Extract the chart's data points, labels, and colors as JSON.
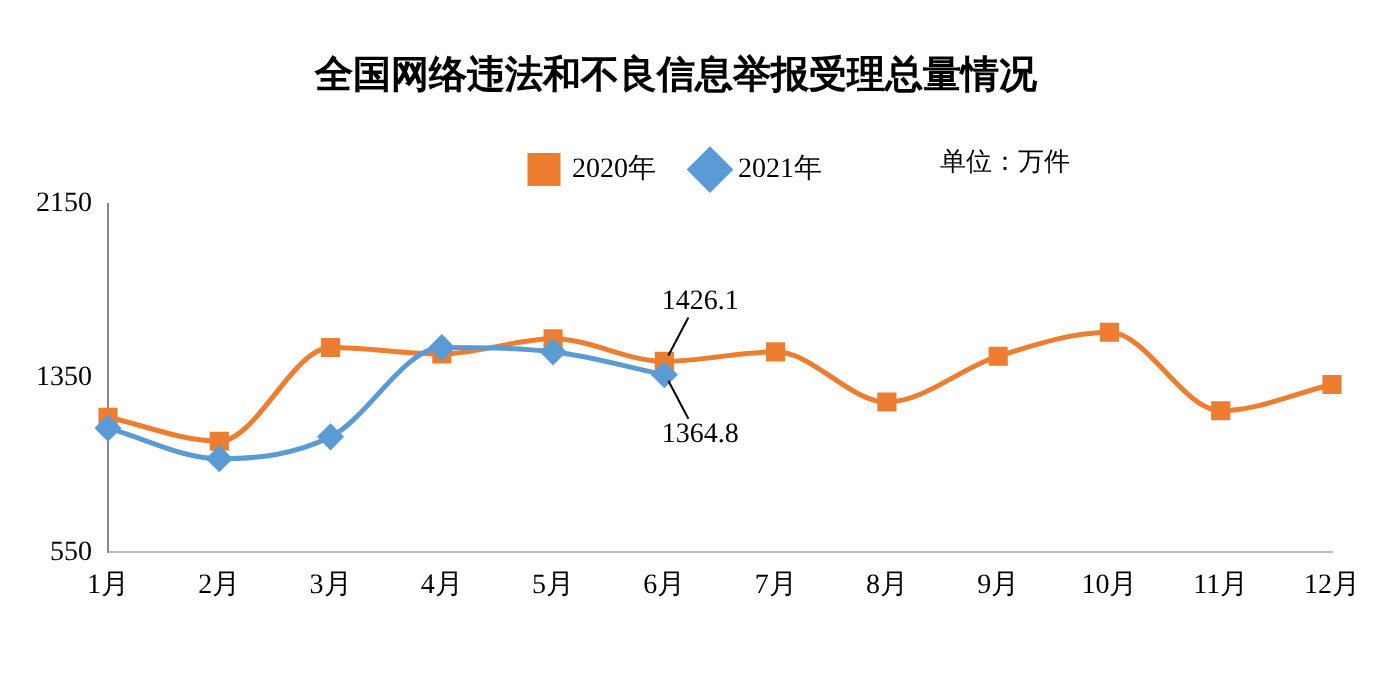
{
  "chart_data": {
    "type": "line",
    "title": "全国网络违法和不良信息举报受理总量情况",
    "categories": [
      "1月",
      "2月",
      "3月",
      "4月",
      "5月",
      "6月",
      "7月",
      "8月",
      "9月",
      "10月",
      "11月",
      "12月"
    ],
    "series": [
      {
        "name": "2020年",
        "color": "#ed7d31",
        "marker": "square",
        "values": [
          1170,
          1060,
          1490,
          1460,
          1530,
          1426.1,
          1470,
          1240,
          1450,
          1560,
          1200,
          1320
        ],
        "value_labels": [
          null,
          null,
          null,
          null,
          null,
          "1426.1",
          null,
          null,
          null,
          null,
          null,
          null
        ]
      },
      {
        "name": "2021年",
        "color": "#5b9bd5",
        "marker": "diamond",
        "values": [
          1120,
          980,
          1080,
          1490,
          1470,
          1364.8,
          null,
          null,
          null,
          null,
          null,
          null
        ],
        "value_labels": [
          null,
          null,
          null,
          null,
          null,
          "1364.8",
          null,
          null,
          null,
          null,
          null,
          null
        ]
      }
    ],
    "ylim": [
      550,
      2150
    ],
    "yticks": [
      550,
      1350,
      2150
    ],
    "grid": false,
    "legend": "top",
    "annotations": [
      "单位：万件"
    ]
  }
}
